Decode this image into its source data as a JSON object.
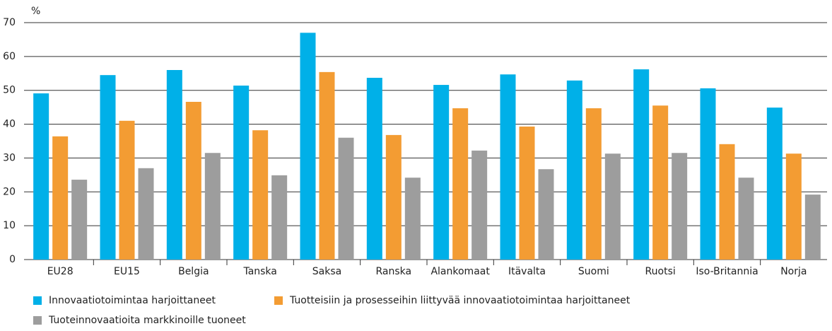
{
  "chart_data": {
    "type": "bar",
    "y_label": "%",
    "categories": [
      "EU28",
      "EU15",
      "Belgia",
      "Tanska",
      "Saksa",
      "Ranska",
      "Alankomaat",
      "Itävalta",
      "Suomi",
      "Ruotsi",
      "Iso-Britannia",
      "Norja"
    ],
    "series": [
      {
        "name": "Innovaatiotoimintaa harjoittaneet",
        "color": "#00b0e8",
        "values": [
          49.1,
          54.5,
          56,
          51.4,
          67,
          53.7,
          51.6,
          54.7,
          52.9,
          56.2,
          50.6,
          44.9
        ]
      },
      {
        "name": "Tuotteisiin ja prosesseihin liittyvää innovaatiotoimintaa harjoittaneet",
        "color": "#f39c33",
        "values": [
          36.4,
          41,
          46.6,
          38.2,
          55.4,
          36.8,
          44.7,
          39.3,
          44.7,
          45.5,
          34.1,
          31.3
        ]
      },
      {
        "name": "Tuoteinnovaatioita markkinoille tuoneet",
        "color": "#9d9d9d",
        "values": [
          23.6,
          27,
          31.5,
          24.9,
          36,
          24.2,
          32.2,
          26.7,
          31.3,
          31.5,
          24.2,
          19.2
        ]
      }
    ],
    "ylim": [
      0,
      70
    ],
    "yticks": [
      0,
      10,
      20,
      30,
      40,
      50,
      60,
      70
    ],
    "grid": true
  }
}
